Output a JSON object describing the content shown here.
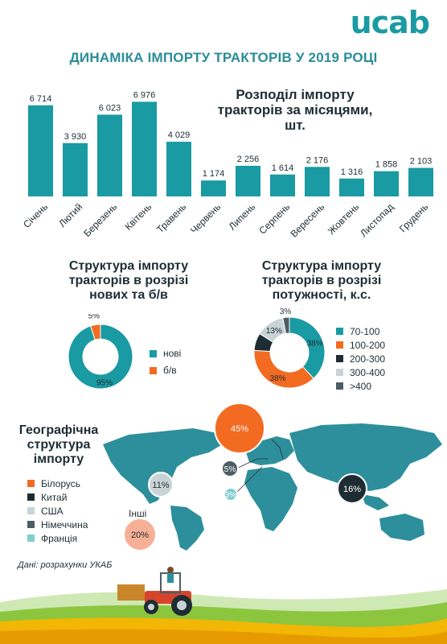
{
  "header": {
    "logo_text": "ucab",
    "title": "ДИНАМІКА ІМПОРТУ ТРАКТОРІВ У 2019 РОЦІ"
  },
  "colors": {
    "teal": "#1a9aa3",
    "orange": "#f36b21",
    "dark": "#1e2d33",
    "light_gray": "#c9d3d6",
    "slate": "#4c5d65",
    "light_teal": "#7fcdd1",
    "salmon": "#f6b095",
    "map_teal": "#2d8f9b"
  },
  "chart_data": [
    {
      "type": "bar",
      "title": "Розподіл імпорту тракторів за місяцями, шт.",
      "categories": [
        "Січень",
        "Лютий",
        "Березень",
        "Квітень",
        "Травень",
        "Червень",
        "Липень",
        "Серпень",
        "Вересень",
        "Жовтень",
        "Листопад",
        "Грудень"
      ],
      "values": [
        6714,
        3930,
        6023,
        6976,
        4029,
        1174,
        2256,
        1614,
        2176,
        1316,
        1858,
        2103
      ],
      "value_labels": [
        "6 714",
        "3 930",
        "6 023",
        "6 976",
        "4 029",
        "1 174",
        "2 256",
        "1 614",
        "2 176",
        "1 316",
        "1 858",
        "2 103"
      ],
      "ylim": [
        0,
        7000
      ],
      "color": "#1a9aa3"
    },
    {
      "type": "pie",
      "title": "Структура імпорту тракторів в розрізі нових та б/в",
      "style": "donut",
      "labels": [
        "нові",
        "б/в"
      ],
      "values": [
        95,
        5
      ],
      "value_labels": [
        "95%",
        "5%"
      ],
      "colors": [
        "#1a9aa3",
        "#f36b21"
      ]
    },
    {
      "type": "pie",
      "title": "Структура імпорту тракторів в розрізі потужності, к.с.",
      "style": "donut",
      "labels": [
        "70-100",
        "100-200",
        "200-300",
        "300-400",
        ">400"
      ],
      "values": [
        38,
        38,
        8,
        13,
        3
      ],
      "value_labels": [
        "38%",
        "38%",
        "8%",
        "13%",
        "3%"
      ],
      "colors": [
        "#1a9aa3",
        "#f36b21",
        "#1e2d33",
        "#c9d3d6",
        "#4c5d65"
      ]
    }
  ],
  "geo": {
    "title": "Географічна структура імпорту",
    "legend": [
      {
        "label": "Білорусь",
        "color": "#f36b21"
      },
      {
        "label": "Китай",
        "color": "#1e2d33"
      },
      {
        "label": "США",
        "color": "#c9d3d6"
      },
      {
        "label": "Німеччина",
        "color": "#4c5d65"
      },
      {
        "label": "Франція",
        "color": "#7fcdd1"
      }
    ],
    "other_label": "Інші",
    "bubbles": [
      {
        "country": "Білорусь",
        "label": "45%",
        "value": 45,
        "color": "#f36b21"
      },
      {
        "country": "Китай",
        "label": "16%",
        "value": 16,
        "color": "#1e2d33"
      },
      {
        "country": "США",
        "label": "11%",
        "value": 11,
        "color": "#c9d3d6"
      },
      {
        "country": "Німеччина",
        "label": "5%",
        "value": 5,
        "color": "#4c5d65"
      },
      {
        "country": "Франція",
        "label": "3%",
        "value": 3,
        "color": "#7fcdd1"
      },
      {
        "country": "Інші",
        "label": "20%",
        "value": 20,
        "color": "#f6b095"
      }
    ]
  },
  "footer": {
    "source": "Дані: розрахунки УКАБ"
  }
}
